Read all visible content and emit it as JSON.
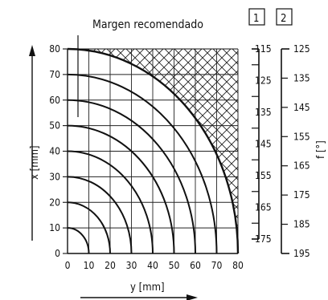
{
  "chart_data": {
    "type": "line",
    "title": "Margen recomendado",
    "xlabel": "y [mm]",
    "ylabel": "x [mm]",
    "xlim": [
      0,
      80
    ],
    "ylim": [
      0,
      80
    ],
    "x_ticks": [
      "0",
      "10",
      "20",
      "30",
      "40",
      "50",
      "60",
      "70",
      "80"
    ],
    "y_ticks": [
      "0",
      "10",
      "20",
      "30",
      "40",
      "50",
      "60",
      "70",
      "80"
    ],
    "grid": true,
    "arcs": [
      {
        "radius": 10
      },
      {
        "radius": 20
      },
      {
        "radius": 30
      },
      {
        "radius": 40
      },
      {
        "radius": 50
      },
      {
        "radius": 60
      },
      {
        "radius": 70
      },
      {
        "radius": 80
      }
    ],
    "hatched_region": "outside radius 80 within 0–80 square",
    "scales": [
      {
        "label": "1",
        "ticks": [
          "115",
          "125",
          "135",
          "145",
          "155",
          "165",
          "175"
        ]
      },
      {
        "label": "2",
        "ticks": [
          "125",
          "135",
          "145",
          "155",
          "165",
          "175",
          "185",
          "195"
        ]
      }
    ],
    "right_label_fragment": "f [°]"
  }
}
